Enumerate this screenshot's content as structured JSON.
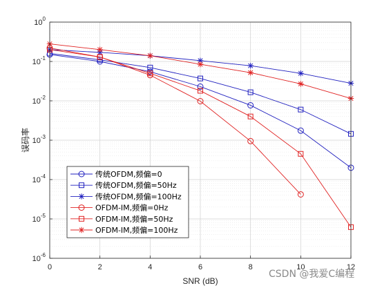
{
  "chart_data": {
    "type": "line",
    "xlabel": "SNR (dB)",
    "ylabel": "误码率",
    "xlim": [
      0,
      12
    ],
    "ylim": [
      1e-06,
      1
    ],
    "yscale": "log",
    "grid": "on (major and minor)",
    "legend_placement": "bottom-left",
    "x_ticks": [
      "0",
      "2",
      "4",
      "6",
      "8",
      "10",
      "12"
    ],
    "y_ticks": [
      {
        "base": "10",
        "exp": "0"
      },
      {
        "base": "10",
        "exp": "-1"
      },
      {
        "base": "10",
        "exp": "-2"
      },
      {
        "base": "10",
        "exp": "-3"
      },
      {
        "base": "10",
        "exp": "-4"
      },
      {
        "base": "10",
        "exp": "-5"
      },
      {
        "base": "10",
        "exp": "-6"
      }
    ],
    "series": [
      {
        "name": "传统OFDM,频偏=0",
        "color": "#1f1fbf",
        "marker": "circle",
        "x": [
          0,
          2,
          4,
          6,
          8,
          10,
          12
        ],
        "y": [
          0.15,
          0.1,
          0.055,
          0.023,
          0.0077,
          0.00175,
          0.0002
        ]
      },
      {
        "name": "传统OFDM,频偏=50Hz",
        "color": "#1f1fbf",
        "marker": "square",
        "x": [
          0,
          2,
          4,
          6,
          8,
          10,
          12
        ],
        "y": [
          0.16,
          0.11,
          0.07,
          0.037,
          0.0165,
          0.006,
          0.00145
        ]
      },
      {
        "name": "传统OFDM,频偏=100Hz",
        "color": "#1f1fbf",
        "marker": "star",
        "x": [
          0,
          2,
          4,
          6,
          8,
          10,
          12
        ],
        "y": [
          0.2,
          0.17,
          0.14,
          0.105,
          0.078,
          0.05,
          0.028
        ]
      },
      {
        "name": "OFDM-IM,频偏=0Hz",
        "color": "#e02020",
        "marker": "circle",
        "x": [
          0,
          2,
          4,
          6,
          8,
          10
        ],
        "y": [
          0.22,
          0.13,
          0.045,
          0.0098,
          0.00095,
          4.2e-05
        ]
      },
      {
        "name": "OFDM-IM,频偏=50Hz",
        "color": "#e02020",
        "marker": "square",
        "x": [
          0,
          2,
          4,
          6,
          8,
          10,
          12
        ],
        "y": [
          0.2,
          0.13,
          0.05,
          0.018,
          0.004,
          0.00045,
          6.2e-06
        ]
      },
      {
        "name": "OFDM-IM,频偏=100Hz",
        "color": "#e02020",
        "marker": "star",
        "x": [
          0,
          2,
          4,
          6,
          8,
          10,
          12
        ],
        "y": [
          0.28,
          0.2,
          0.14,
          0.085,
          0.052,
          0.027,
          0.0115
        ]
      }
    ]
  },
  "watermark": "CSDN @我爱C编程"
}
